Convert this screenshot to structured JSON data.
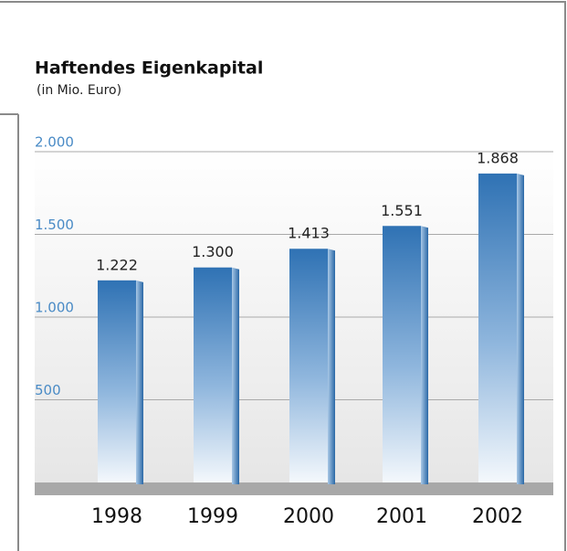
{
  "chart_data": {
    "type": "bar",
    "title": "Haftendes Eigenkapital",
    "subtitle": "(in Mio. Euro)",
    "categories": [
      "1998",
      "1999",
      "2000",
      "2001",
      "2002"
    ],
    "values": [
      1222,
      1300,
      1413,
      1551,
      1868
    ],
    "value_labels": [
      "1.222",
      "1.300",
      "1.413",
      "1.551",
      "1.868"
    ],
    "color": "#2f72b4",
    "ylim": [
      0,
      2000
    ],
    "yticks": [
      500,
      {
        "value": 1000,
        "label": "1.000"
      },
      {
        "value": 1500,
        "label": "1.500"
      },
      {
        "value": 2000,
        "label": "2.000"
      }
    ],
    "grid": true
  }
}
